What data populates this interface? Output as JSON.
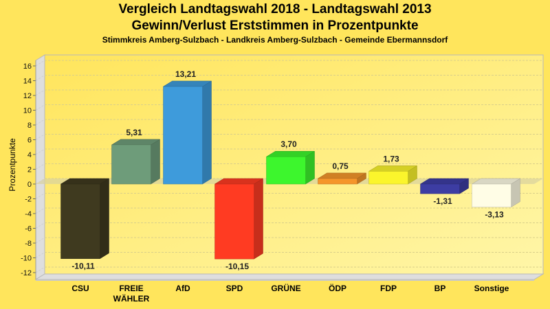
{
  "chart_data": {
    "type": "bar",
    "title": "Vergleich Landtagswahl 2018 - Landtagswahl 2013",
    "subtitle": "Gewinn/Verlust Erststimmen in Prozentpunkte",
    "subtitle2": "Stimmkreis Amberg-Sulzbach - Landkreis Amberg-Sulzbach - Gemeinde Ebermannsdorf",
    "xlabel": "",
    "ylabel": "Prozentpunkte",
    "ylim": [
      -12,
      16
    ],
    "yticks": [
      16,
      14,
      12,
      10,
      8,
      6,
      4,
      2,
      0,
      -2,
      -4,
      -6,
      -8,
      -10,
      -12
    ],
    "grid": true,
    "categories": [
      "CSU",
      "FREIE WÄHLER",
      "AfD",
      "SPD",
      "GRÜNE",
      "ÖDP",
      "FDP",
      "BP",
      "Sonstige"
    ],
    "category_lines": [
      [
        "CSU"
      ],
      [
        "FREIE",
        "WÄHLER"
      ],
      [
        "AfD"
      ],
      [
        "SPD"
      ],
      [
        "GRÜNE"
      ],
      [
        "ÖDP"
      ],
      [
        "FDP"
      ],
      [
        "BP"
      ],
      [
        "Sonstige"
      ]
    ],
    "values": [
      -10.11,
      5.31,
      13.21,
      -10.15,
      3.7,
      0.75,
      1.73,
      -1.31,
      -3.13
    ],
    "value_labels": [
      "-10,11",
      "5,31",
      "13,21",
      "-10,15",
      "3,70",
      "0,75",
      "1,73",
      "-1,31",
      "-3,13"
    ],
    "colors": [
      "#3F3A1F",
      "#6E9C7A",
      "#3E9BDB",
      "#FF3B22",
      "#3DF62D",
      "#F5962A",
      "#FBF52C",
      "#3D3DA3",
      "#FFFDE6"
    ]
  }
}
